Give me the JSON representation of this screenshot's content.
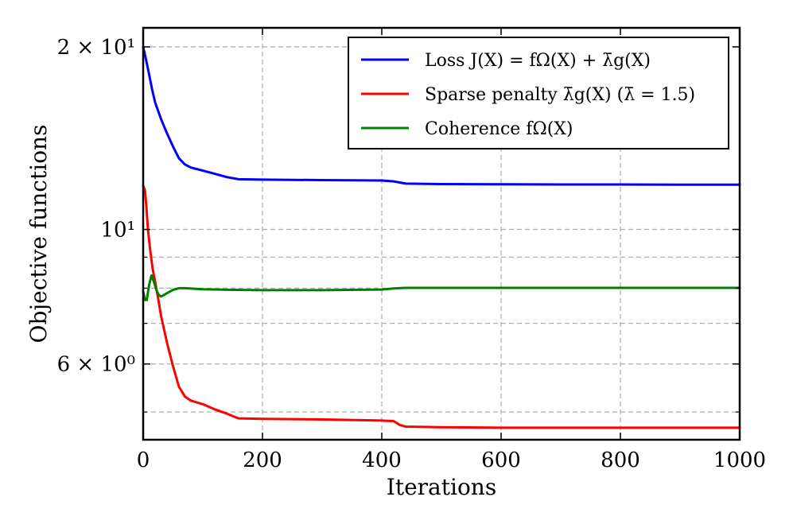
{
  "chart_data": {
    "type": "line",
    "title": "",
    "xlabel": "Iterations",
    "ylabel": "Objective functions",
    "xlim": [
      0,
      1000
    ],
    "ylim": [
      4.5,
      21.5
    ],
    "yscale": "log",
    "grid": true,
    "legend_position": "top-right",
    "x_ticks": [
      {
        "value": 0,
        "label": "0"
      },
      {
        "value": 200,
        "label": "200"
      },
      {
        "value": 400,
        "label": "400"
      },
      {
        "value": 600,
        "label": "600"
      },
      {
        "value": 800,
        "label": "800"
      },
      {
        "value": 1000,
        "label": "1000"
      }
    ],
    "y_major_ticks": [
      {
        "value": 20,
        "label": "2 × 10¹"
      },
      {
        "value": 10,
        "label": "10¹"
      },
      {
        "value": 6,
        "label": "6 × 10⁰"
      }
    ],
    "y_minor_ticks": [
      5,
      7,
      8,
      9
    ],
    "series": [
      {
        "name": "Loss J(X) = f^Ω(X) + λ̄g(X)",
        "legend_label": "Loss J(X) = fΩ(X) + λ̄g(X)",
        "color": "#0000ff",
        "x": [
          0,
          5,
          10,
          15,
          20,
          30,
          40,
          50,
          60,
          70,
          80,
          100,
          120,
          140,
          160,
          200,
          300,
          400,
          420,
          440,
          500,
          600,
          700,
          800,
          900,
          1000
        ],
        "values": [
          20.0,
          19.0,
          18.0,
          17.0,
          16.2,
          15.2,
          14.4,
          13.7,
          13.1,
          12.8,
          12.65,
          12.5,
          12.35,
          12.2,
          12.1,
          12.08,
          12.06,
          12.04,
          12.0,
          11.9,
          11.88,
          11.87,
          11.86,
          11.86,
          11.85,
          11.85
        ]
      },
      {
        "name": "Sparse penalty λ̄g(X) (λ̄ = 1.5)",
        "legend_label": "Sparse penalty λ̄g(X) (λ̄ = 1.5)",
        "color": "#ff0000",
        "x": [
          0,
          3,
          5,
          8,
          12,
          16,
          20,
          25,
          30,
          40,
          50,
          60,
          65,
          70,
          80,
          100,
          120,
          140,
          155,
          160,
          200,
          300,
          400,
          420,
          430,
          440,
          500,
          600,
          700,
          800,
          900,
          1000
        ],
        "values": [
          11.8,
          11.6,
          11.0,
          10.0,
          9.2,
          8.6,
          8.2,
          7.7,
          7.2,
          6.5,
          5.95,
          5.5,
          5.4,
          5.3,
          5.22,
          5.15,
          5.05,
          4.97,
          4.9,
          4.88,
          4.87,
          4.86,
          4.84,
          4.83,
          4.76,
          4.73,
          4.72,
          4.71,
          4.71,
          4.71,
          4.71,
          4.71
        ]
      },
      {
        "name": "Coherence f^Ω(X)",
        "legend_label": "Coherence fΩ(X)",
        "color": "#008000",
        "x": [
          0,
          3,
          6,
          10,
          14,
          18,
          22,
          26,
          30,
          35,
          40,
          50,
          60,
          70,
          100,
          150,
          200,
          300,
          400,
          420,
          440,
          500,
          600,
          700,
          800,
          900,
          1000
        ],
        "values": [
          7.9,
          7.65,
          7.65,
          8.1,
          8.4,
          8.2,
          7.95,
          7.8,
          7.75,
          7.8,
          7.85,
          7.95,
          8.0,
          8.0,
          7.97,
          7.95,
          7.94,
          7.94,
          7.96,
          7.99,
          8.01,
          8.01,
          8.01,
          8.01,
          8.01,
          8.01,
          8.01
        ]
      }
    ]
  }
}
